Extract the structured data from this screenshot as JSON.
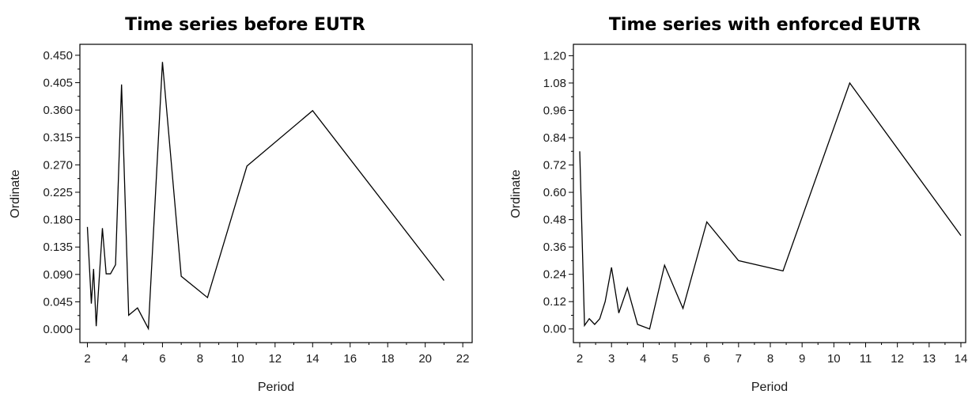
{
  "chart_data": [
    {
      "type": "line",
      "title": "Time series before EUTR",
      "xlabel": "Period",
      "ylabel": "Ordinate",
      "xlim": [
        1.6,
        22.5
      ],
      "ylim": [
        -0.022,
        0.468
      ],
      "x_ticks": [
        "2",
        "4",
        "6",
        "8",
        "10",
        "12",
        "14",
        "16",
        "18",
        "20",
        "22"
      ],
      "y_ticks": [
        "0.000",
        "0.045",
        "0.090",
        "0.135",
        "0.180",
        "0.225",
        "0.270",
        "0.315",
        "0.360",
        "0.405",
        "0.450"
      ],
      "grid": false,
      "series": [
        {
          "x": [
            2.0,
            2.21,
            2.33,
            2.47,
            2.8,
            3.0,
            3.23,
            3.5,
            3.82,
            4.2,
            4.67,
            5.25,
            6.0,
            7.0,
            8.4,
            10.5,
            14.0,
            21.0
          ],
          "values": [
            0.168,
            0.042,
            0.099,
            0.005,
            0.166,
            0.091,
            0.091,
            0.106,
            0.402,
            0.023,
            0.035,
            0.001,
            0.439,
            0.087,
            0.052,
            0.268,
            0.359,
            0.08
          ]
        }
      ],
      "color": "#000000"
    },
    {
      "type": "line",
      "title": "Time series with enforced EUTR",
      "xlabel": "Period",
      "ylabel": "Ordinate",
      "xlim": [
        1.8,
        14.15
      ],
      "ylim": [
        -0.06,
        1.25
      ],
      "x_ticks": [
        "2",
        "3",
        "4",
        "5",
        "6",
        "7",
        "8",
        "9",
        "10",
        "11",
        "12",
        "13",
        "14"
      ],
      "y_ticks": [
        "0.00",
        "0.12",
        "0.24",
        "0.36",
        "0.48",
        "0.60",
        "0.72",
        "0.84",
        "0.96",
        "1.08",
        "1.20"
      ],
      "grid": false,
      "series": [
        {
          "x": [
            2.0,
            2.15,
            2.3,
            2.47,
            2.63,
            2.8,
            3.0,
            3.23,
            3.5,
            3.82,
            4.2,
            4.67,
            5.25,
            6.0,
            7.0,
            8.4,
            10.5,
            14.0
          ],
          "values": [
            0.78,
            0.015,
            0.045,
            0.02,
            0.045,
            0.12,
            0.27,
            0.07,
            0.18,
            0.02,
            0.0,
            0.28,
            0.09,
            0.47,
            0.3,
            0.255,
            1.08,
            0.41
          ]
        }
      ],
      "color": "#000000"
    }
  ]
}
